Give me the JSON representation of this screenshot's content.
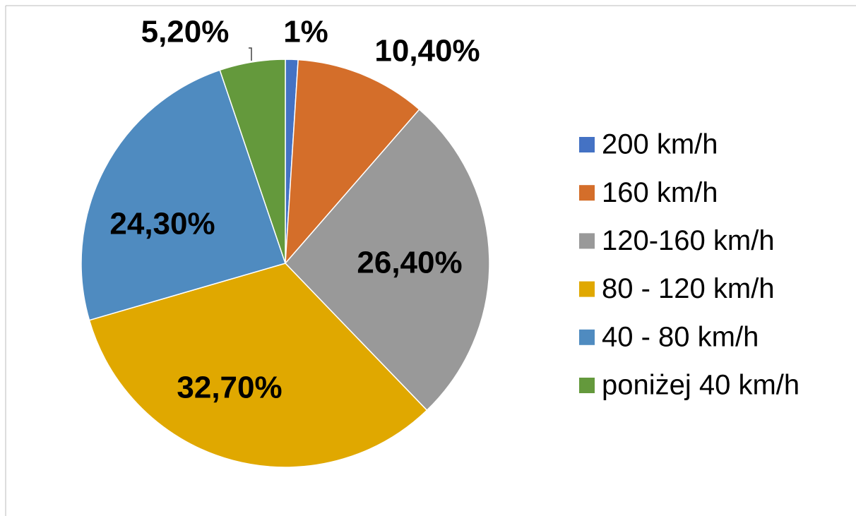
{
  "chart_data": {
    "type": "pie",
    "categories": [
      "200 km/h",
      "160 km/h",
      "120-160 km/h",
      "80 - 120 km/h",
      "40 - 80 km/h",
      "poniżej 40 km/h"
    ],
    "values": [
      1,
      10.4,
      26.4,
      32.7,
      24.3,
      5.2
    ],
    "value_labels": [
      "1%",
      "10,40%",
      "26,40%",
      "32,70%",
      "24,30%",
      "5,20%"
    ],
    "colors": [
      "#4472c4",
      "#d46e2a",
      "#999999",
      "#e0a800",
      "#4f8bc0",
      "#64993c"
    ],
    "legend": "right"
  }
}
